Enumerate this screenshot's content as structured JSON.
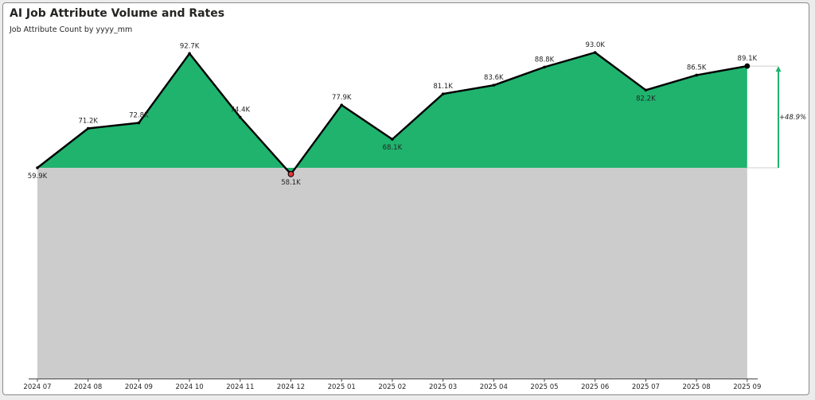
{
  "header": {
    "title": "AI Job Attribute Volume and Rates",
    "subtitle": "Job Attribute Count by yyyy_mm"
  },
  "colors": {
    "area_above": "#1fb36e",
    "area_below": "#cccccc",
    "line": "#000000",
    "min_marker": "#e03a3a",
    "growth_arrow": "#1fb36e",
    "baseline_guide": "#cfcfcf"
  },
  "chart_data": {
    "type": "area",
    "categories": [
      "2024 07",
      "2024 08",
      "2024 09",
      "2024 10",
      "2024 11",
      "2024 12",
      "2025 01",
      "2025 02",
      "2025 03",
      "2025 04",
      "2025 05",
      "2025 06",
      "2025 07",
      "2025 08",
      "2025 09"
    ],
    "values": [
      59.9,
      71.2,
      72.8,
      92.7,
      74.4,
      58.1,
      77.9,
      68.1,
      81.1,
      83.6,
      88.8,
      93.0,
      82.2,
      86.5,
      89.1
    ],
    "labels": [
      "59.9K",
      "71.2K",
      "72.8K",
      "92.7K",
      "74.4K",
      "58.1K",
      "77.9K",
      "68.1K",
      "81.1K",
      "83.6K",
      "88.8K",
      "93.0K",
      "82.2K",
      "86.5K",
      "89.1K"
    ],
    "units": "K",
    "baseline_value": 59.9,
    "change_label": "+48.9%",
    "title": "AI Job Attribute Volume and Rates",
    "subtitle": "Job Attribute Count by yyyy_mm",
    "xlabel": "",
    "ylabel": "",
    "grid": false,
    "legend": "none",
    "min_point_highlight": "2024 12",
    "last_point_highlight": "2025 09"
  }
}
